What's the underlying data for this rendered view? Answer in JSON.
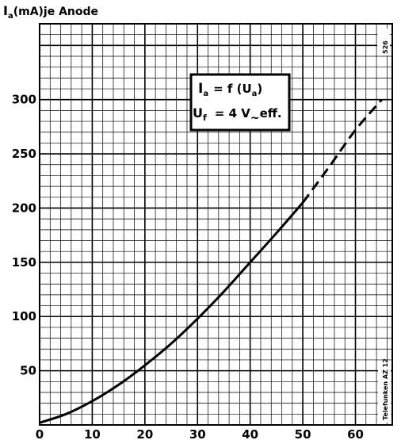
{
  "chart_data": {
    "type": "line",
    "ylabel_main": "I",
    "ylabel_sub": "a",
    "ylabel_rest": "(mA)je Anode",
    "xlim": [
      0,
      67
    ],
    "ylim": [
      0,
      370
    ],
    "x_ticks": [
      "0",
      "10",
      "20",
      "30",
      "40",
      "50",
      "60"
    ],
    "y_ticks": [
      "50",
      "100",
      "150",
      "200",
      "250",
      "300"
    ],
    "grid": true,
    "series": [
      {
        "style": "solid",
        "x": [
          0,
          5,
          10,
          15,
          20,
          25,
          30,
          35,
          40,
          45,
          50
        ],
        "y": [
          2,
          10,
          22,
          37,
          55,
          75,
          98,
          123,
          150,
          177,
          205
        ]
      },
      {
        "style": "dashed",
        "x": [
          50,
          55,
          60,
          65
        ],
        "y": [
          205,
          238,
          272,
          300
        ]
      }
    ],
    "annotation": {
      "line1_I": "I",
      "line1_a": "a",
      "line1_eq": "= f (U",
      "line1_a2": "a",
      "line1_close": ")",
      "line2_U": "U",
      "line2_f": "f",
      "line2_eq": "= 4 V",
      "line2_tilde": "~",
      "line2_eff": "eff."
    },
    "corner_code": "526",
    "side_label": "Telefunken AZ 12"
  }
}
